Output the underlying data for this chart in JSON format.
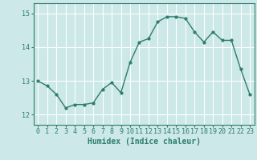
{
  "x": [
    0,
    1,
    2,
    3,
    4,
    5,
    6,
    7,
    8,
    9,
    10,
    11,
    12,
    13,
    14,
    15,
    16,
    17,
    18,
    19,
    20,
    21,
    22,
    23
  ],
  "y": [
    13.0,
    12.85,
    12.6,
    12.2,
    12.3,
    12.3,
    12.35,
    12.75,
    12.95,
    12.65,
    13.55,
    14.15,
    14.25,
    14.75,
    14.9,
    14.9,
    14.85,
    14.45,
    14.15,
    14.45,
    14.2,
    14.2,
    13.35,
    12.6
  ],
  "line_color": "#2e7d6e",
  "marker": "o",
  "marker_size": 2,
  "background_color": "#cce8e8",
  "grid_color": "#ffffff",
  "xlabel": "Humidex (Indice chaleur)",
  "xlabel_fontsize": 7,
  "ylim": [
    11.7,
    15.3
  ],
  "yticks": [
    12,
    13,
    14,
    15
  ],
  "xticks": [
    0,
    1,
    2,
    3,
    4,
    5,
    6,
    7,
    8,
    9,
    10,
    11,
    12,
    13,
    14,
    15,
    16,
    17,
    18,
    19,
    20,
    21,
    22,
    23
  ],
  "tick_fontsize": 6,
  "line_width": 1.0
}
